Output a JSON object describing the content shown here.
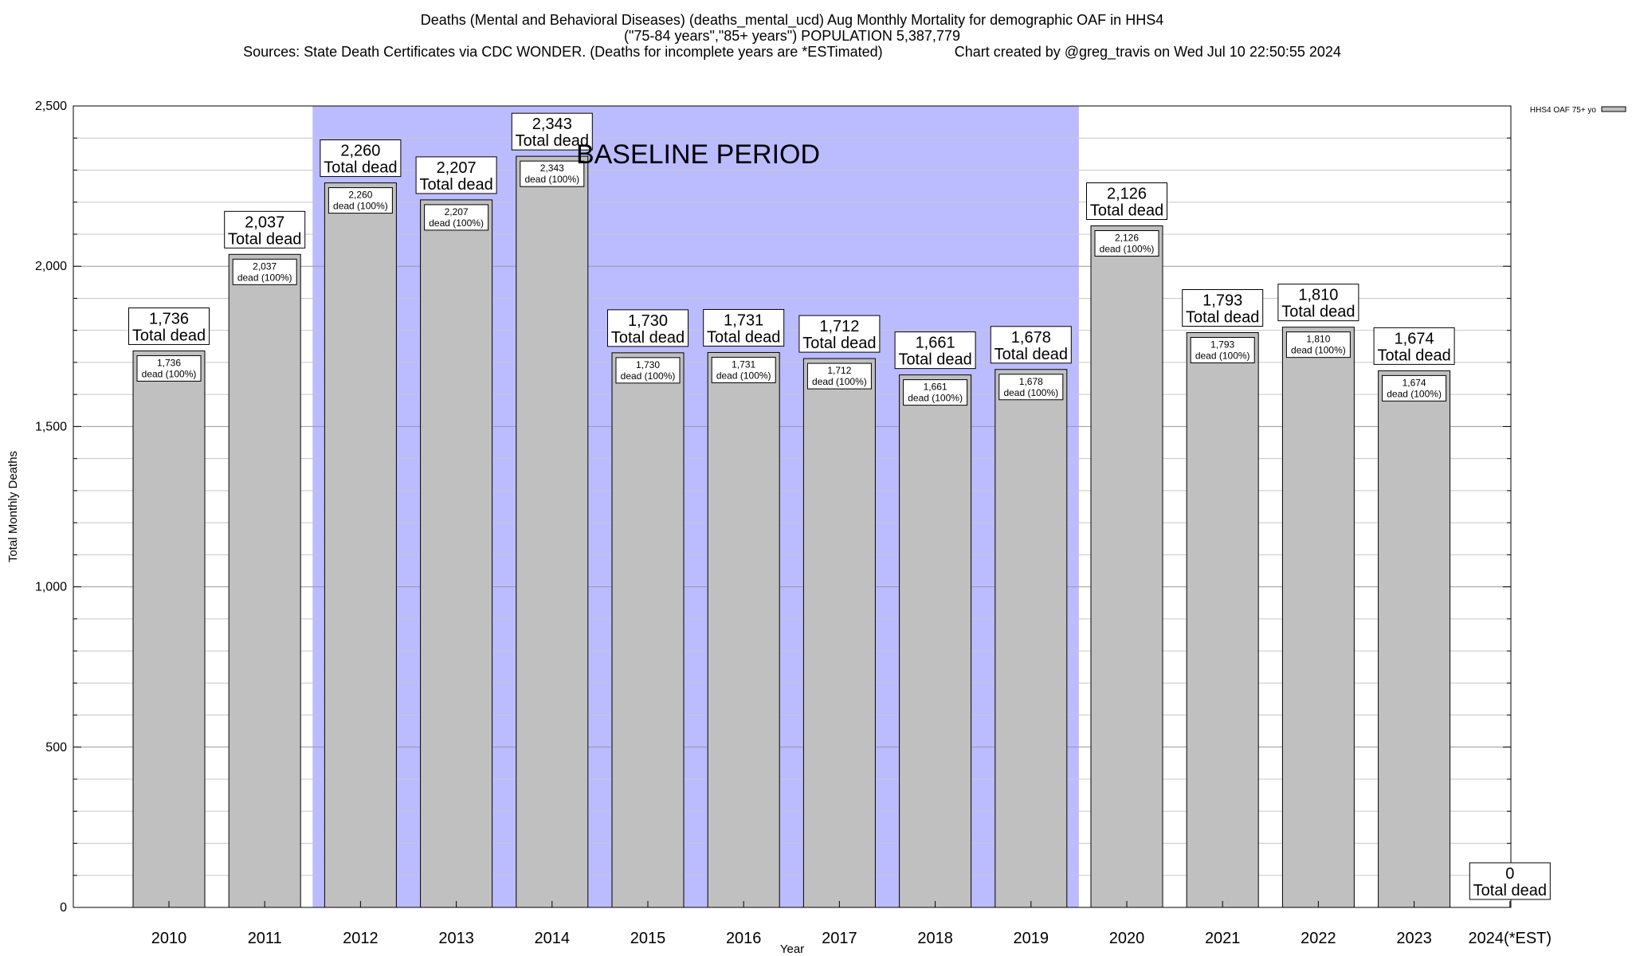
{
  "chart_data": {
    "type": "bar",
    "title_lines": [
      "Deaths (Mental and Behavioral Diseases) (deaths_mental_ucd) Aug Monthly Mortality for demographic OAF in HHS4",
      "(\"75-84 years\",\"85+ years\") POPULATION 5,387,779",
      "Sources: State Death Certificates via CDC WONDER. (Deaths for incomplete years are *ESTimated)                  Chart created by @greg_travis on Wed Jul 10 22:50:55 2024"
    ],
    "xlabel": "Year",
    "ylabel": "Total Monthly Deaths",
    "ylim": [
      0,
      2500
    ],
    "yticks": [
      0,
      500,
      1000,
      1500,
      2000,
      2500
    ],
    "ytick_labels": [
      "0",
      "500",
      "1,000",
      "1,500",
      "2,000",
      "2,500"
    ],
    "minor_y_step": 100,
    "grid": true,
    "legend_position": "top-right",
    "categories": [
      "2010",
      "2011",
      "2012",
      "2013",
      "2014",
      "2015",
      "2016",
      "2017",
      "2018",
      "2019",
      "2020",
      "2021",
      "2022",
      "2023",
      "2024(*EST)"
    ],
    "series": [
      {
        "name": "HHS4 OAF 75+ yo",
        "values": [
          1736,
          2037,
          2260,
          2207,
          2343,
          1730,
          1731,
          1712,
          1661,
          1678,
          2126,
          1793,
          1810,
          1674,
          0
        ],
        "color": "#c0c0c0"
      }
    ],
    "top_labels": [
      "1,736",
      "2,037",
      "2,260",
      "2,207",
      "2,343",
      "1,730",
      "1,731",
      "1,712",
      "1,661",
      "1,678",
      "2,126",
      "1,793",
      "1,810",
      "1,674",
      "0"
    ],
    "top_label_suffix": "Total dead",
    "inner_labels": [
      "1,736",
      "2,037",
      "2,260",
      "2,207",
      "2,343",
      "1,730",
      "1,731",
      "1,712",
      "1,661",
      "1,678",
      "2,126",
      "1,793",
      "1,810",
      "1,674",
      ""
    ],
    "inner_label_suffix": "dead (100%)",
    "baseline_period": {
      "label": "BASELINE PERIOD",
      "start_category": "2012",
      "end_category": "2019",
      "color": "#bbbbff"
    }
  }
}
